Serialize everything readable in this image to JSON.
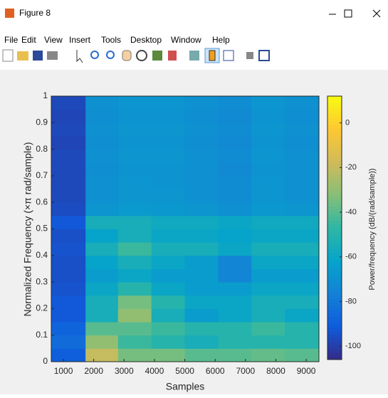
{
  "window": {
    "title": "Figure 8",
    "menu": [
      "File",
      "Edit",
      "View",
      "Insert",
      "Tools",
      "Desktop",
      "Window",
      "Help"
    ]
  },
  "chart_data": {
    "type": "heatmap",
    "xlabel": "Samples",
    "ylabel": "Normalized Frequency  (×π rad/sample)",
    "colorbar_label": "Power/frequency (dB/(rad/sample))",
    "x_edges": [
      600,
      1730,
      2800,
      3900,
      5000,
      6100,
      7200,
      8300,
      9420
    ],
    "y_edges": [
      0,
      0.05,
      0.1,
      0.15,
      0.2,
      0.25,
      0.3,
      0.35,
      0.4,
      0.45,
      0.5,
      0.55,
      0.6,
      0.65,
      0.7,
      0.75,
      0.8,
      0.85,
      0.9,
      0.95,
      1
    ],
    "z": [
      [
        -90,
        -20,
        -35,
        -35,
        -40,
        -40,
        -38,
        -40
      ],
      [
        -85,
        -30,
        -45,
        -50,
        -55,
        -50,
        -50,
        -50
      ],
      [
        -88,
        -40,
        -40,
        -45,
        -50,
        -50,
        -45,
        -50
      ],
      [
        -92,
        -55,
        -30,
        -55,
        -65,
        -60,
        -55,
        -60
      ],
      [
        -92,
        -55,
        -35,
        -50,
        -60,
        -60,
        -55,
        -55
      ],
      [
        -94,
        -60,
        -50,
        -60,
        -65,
        -65,
        -60,
        -60
      ],
      [
        -95,
        -65,
        -60,
        -65,
        -65,
        -75,
        -65,
        -65
      ],
      [
        -95,
        -62,
        -55,
        -60,
        -65,
        -75,
        -60,
        -60
      ],
      [
        -94,
        -55,
        -45,
        -55,
        -55,
        -60,
        -55,
        -55
      ],
      [
        -95,
        -62,
        -55,
        -60,
        -60,
        -62,
        -60,
        -60
      ],
      [
        -92,
        -55,
        -55,
        -58,
        -58,
        -60,
        -58,
        -58
      ],
      [
        -96,
        -68,
        -66,
        -67,
        -68,
        -70,
        -67,
        -68
      ],
      [
        -97,
        -70,
        -68,
        -68,
        -70,
        -72,
        -68,
        -70
      ],
      [
        -97,
        -70,
        -68,
        -69,
        -70,
        -72,
        -68,
        -70
      ],
      [
        -97,
        -71,
        -69,
        -69,
        -70,
        -73,
        -69,
        -70
      ],
      [
        -97,
        -70,
        -68,
        -68,
        -70,
        -72,
        -68,
        -70
      ],
      [
        -98,
        -71,
        -69,
        -69,
        -71,
        -73,
        -69,
        -71
      ],
      [
        -97,
        -70,
        -68,
        -68,
        -70,
        -72,
        -68,
        -70
      ],
      [
        -98,
        -71,
        -69,
        -69,
        -71,
        -73,
        -69,
        -71
      ],
      [
        -97,
        -70,
        -68,
        -68,
        -70,
        -72,
        -68,
        -70
      ]
    ],
    "xlim": [
      600,
      9420
    ],
    "ylim": [
      0,
      1
    ],
    "xticks": [
      1000,
      2000,
      3000,
      4000,
      5000,
      6000,
      7000,
      8000,
      9000
    ],
    "yticks": [
      0,
      0.1,
      0.2,
      0.3,
      0.4,
      0.5,
      0.6,
      0.7,
      0.8,
      0.9,
      1
    ],
    "clim": [
      -106,
      12
    ],
    "cticks": [
      -100,
      -80,
      -60,
      -40,
      -20,
      0
    ]
  }
}
